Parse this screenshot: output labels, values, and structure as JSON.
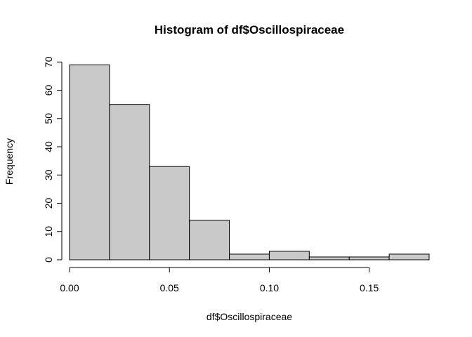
{
  "chart_data": {
    "type": "bar",
    "title": "Histogram of df$Oscillospiraceae",
    "xlabel": "df$Oscillospiraceae",
    "ylabel": "Frequency",
    "bins": [
      {
        "start": 0.0,
        "end": 0.02,
        "count": 69
      },
      {
        "start": 0.02,
        "end": 0.04,
        "count": 55
      },
      {
        "start": 0.04,
        "end": 0.06,
        "count": 33
      },
      {
        "start": 0.06,
        "end": 0.08,
        "count": 14
      },
      {
        "start": 0.08,
        "end": 0.1,
        "count": 2
      },
      {
        "start": 0.1,
        "end": 0.12,
        "count": 3
      },
      {
        "start": 0.12,
        "end": 0.14,
        "count": 1
      },
      {
        "start": 0.14,
        "end": 0.16,
        "count": 1
      },
      {
        "start": 0.16,
        "end": 0.18,
        "count": 2
      }
    ],
    "xlim": [
      0.0,
      0.18
    ],
    "ylim": [
      0,
      70
    ],
    "x_ticks": [
      0.0,
      0.05,
      0.1,
      0.15
    ],
    "x_tick_labels": [
      "0.00",
      "0.05",
      "0.10",
      "0.15"
    ],
    "y_ticks": [
      0,
      10,
      20,
      30,
      40,
      50,
      60,
      70
    ],
    "y_tick_labels": [
      "0",
      "10",
      "20",
      "30",
      "40",
      "50",
      "60",
      "70"
    ],
    "grid": false,
    "colors": {
      "bar_fill": "#c9c9c9",
      "bar_stroke": "#000000"
    }
  }
}
